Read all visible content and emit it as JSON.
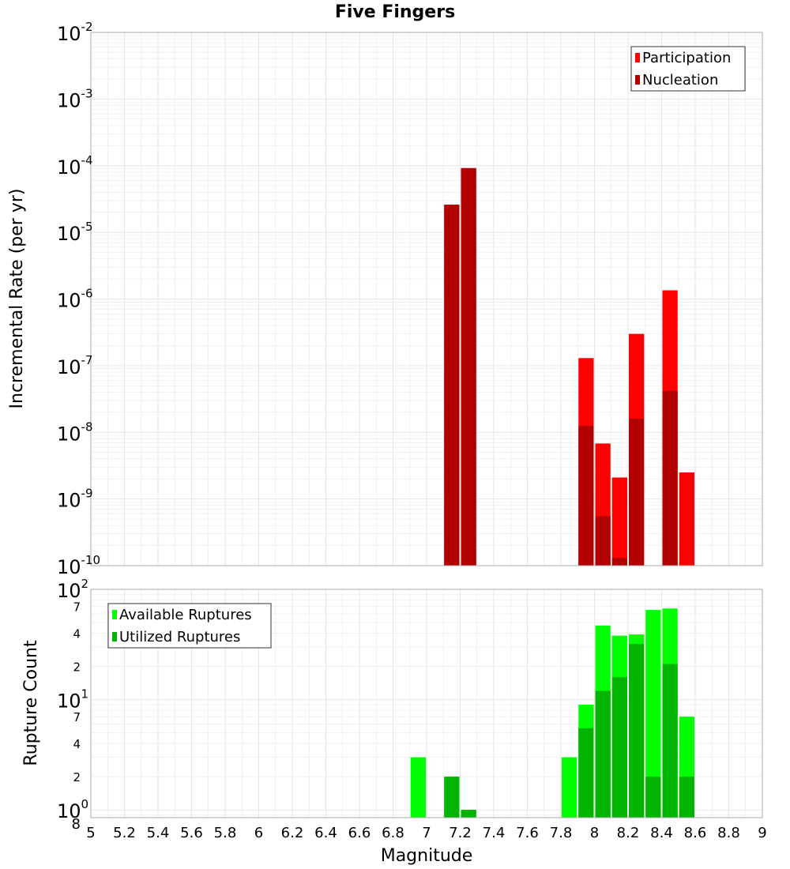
{
  "title": "Five Fingers",
  "colors": {
    "participation": "#ff0000",
    "nucleation": "#b00000",
    "available": "#00ff00",
    "utilized": "#00b400",
    "grid": "#e6e6e6",
    "frame": "#aaaaaa"
  },
  "x_axis": {
    "label": "Magnitude",
    "range": [
      5,
      9
    ],
    "ticks": [
      "5",
      "5.2",
      "5.4",
      "5.6",
      "5.8",
      "6",
      "6.2",
      "6.4",
      "6.6",
      "6.8",
      "7",
      "7.2",
      "7.4",
      "7.6",
      "7.8",
      "8",
      "8.2",
      "8.4",
      "8.6",
      "8.8",
      "9"
    ]
  },
  "chart_data": [
    {
      "type": "bar",
      "ylabel": "Incremental Rate (per yr)",
      "yscale": "log",
      "ylim": [
        1e-10,
        0.01
      ],
      "ytick_exponents": [
        "-2",
        "-3",
        "-4",
        "-5",
        "-6",
        "-7",
        "-8",
        "-9",
        "-10"
      ],
      "ytick_base": "10",
      "legend": {
        "placement": "top-right",
        "entries": [
          "Participation",
          "Nucleation"
        ]
      },
      "bin_width": 0.1,
      "series": [
        {
          "name": "Participation",
          "points": [
            {
              "x": 7.15,
              "y": 2.6e-05
            },
            {
              "x": 7.25,
              "y": 9.2e-05
            },
            {
              "x": 7.95,
              "y": 1.3e-07
            },
            {
              "x": 8.05,
              "y": 6.8e-09
            },
            {
              "x": 8.15,
              "y": 2.1e-09
            },
            {
              "x": 8.25,
              "y": 3e-07
            },
            {
              "x": 8.45,
              "y": 1.35e-06
            },
            {
              "x": 8.55,
              "y": 2.5e-09
            }
          ]
        },
        {
          "name": "Nucleation",
          "points": [
            {
              "x": 7.15,
              "y": 2.6e-05
            },
            {
              "x": 7.25,
              "y": 9.2e-05
            },
            {
              "x": 7.95,
              "y": 1.25e-08
            },
            {
              "x": 8.05,
              "y": 5.5e-10
            },
            {
              "x": 8.15,
              "y": 1.3e-10
            },
            {
              "x": 8.25,
              "y": 1.6e-08
            },
            {
              "x": 8.45,
              "y": 4.2e-08
            }
          ]
        }
      ]
    },
    {
      "type": "bar",
      "ylabel": "Rupture Count",
      "yscale": "log",
      "ylim": [
        0.85,
        100
      ],
      "major_ticks": [
        {
          "value": 1,
          "base": "10",
          "exp": "0"
        },
        {
          "value": 10,
          "base": "10",
          "exp": "1"
        },
        {
          "value": 100,
          "base": "10",
          "exp": "2"
        }
      ],
      "minor_labels": [
        {
          "value": 0.8,
          "label": "8"
        },
        {
          "value": 2,
          "label": "2"
        },
        {
          "value": 4,
          "label": "4"
        },
        {
          "value": 7,
          "label": "7"
        },
        {
          "value": 20,
          "label": "2"
        },
        {
          "value": 40,
          "label": "4"
        },
        {
          "value": 70,
          "label": "7"
        }
      ],
      "legend": {
        "placement": "top-left",
        "entries": [
          "Available Ruptures",
          "Utilized Ruptures"
        ]
      },
      "bin_width": 0.1,
      "series": [
        {
          "name": "Available Ruptures",
          "points": [
            {
              "x": 6.95,
              "y": 3
            },
            {
              "x": 7.15,
              "y": 2
            },
            {
              "x": 7.25,
              "y": 1
            },
            {
              "x": 7.85,
              "y": 3
            },
            {
              "x": 7.95,
              "y": 9
            },
            {
              "x": 8.05,
              "y": 47
            },
            {
              "x": 8.15,
              "y": 38
            },
            {
              "x": 8.25,
              "y": 39
            },
            {
              "x": 8.35,
              "y": 65
            },
            {
              "x": 8.45,
              "y": 67
            },
            {
              "x": 8.55,
              "y": 7
            }
          ]
        },
        {
          "name": "Utilized Ruptures",
          "points": [
            {
              "x": 7.15,
              "y": 2
            },
            {
              "x": 7.25,
              "y": 1
            },
            {
              "x": 7.95,
              "y": 5.5
            },
            {
              "x": 8.05,
              "y": 12
            },
            {
              "x": 8.15,
              "y": 16
            },
            {
              "x": 8.25,
              "y": 32
            },
            {
              "x": 8.35,
              "y": 2
            },
            {
              "x": 8.45,
              "y": 21
            },
            {
              "x": 8.55,
              "y": 2
            }
          ]
        }
      ]
    }
  ]
}
